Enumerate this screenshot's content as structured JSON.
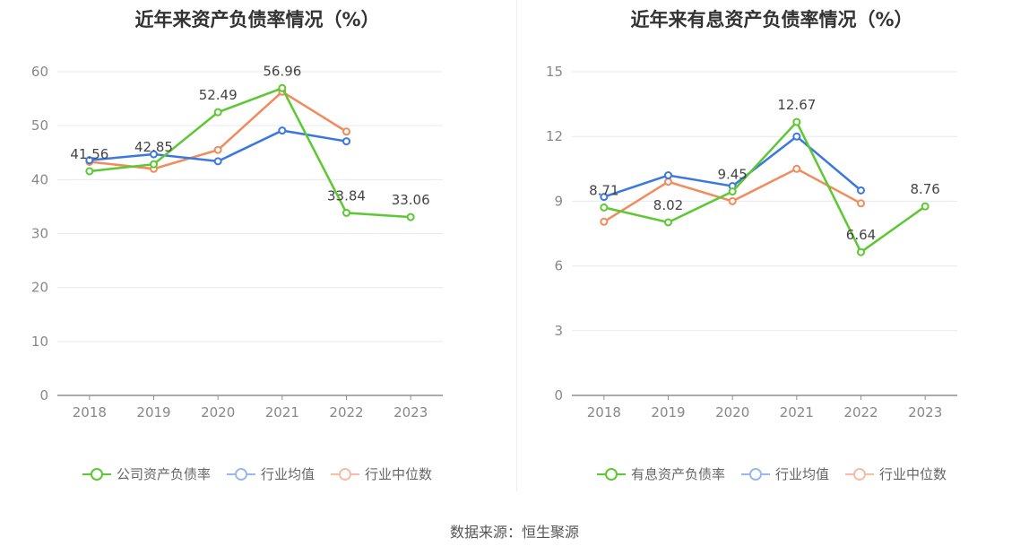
{
  "charts": [
    {
      "title": "近年来资产负债率情况（%）",
      "legend": [
        "公司资产负债率",
        "行业均值",
        "行业中位数"
      ],
      "legend_colors": [
        "#5cc832",
        "#3a78e0",
        "#f28a5c"
      ]
    },
    {
      "title": "近年来有息资产负债率情况（%）",
      "legend": [
        "有息资产负债率",
        "行业均值",
        "行业中位数"
      ],
      "legend_colors": [
        "#5cc832",
        "#3a78e0",
        "#f28a5c"
      ]
    }
  ],
  "footer": "数据来源：恒生聚源",
  "chart_data": [
    {
      "type": "line",
      "title": "近年来资产负债率情况（%）",
      "categories": [
        "2018",
        "2019",
        "2020",
        "2021",
        "2022",
        "2023"
      ],
      "ylim": [
        0,
        60
      ],
      "yticks": [
        0,
        10,
        20,
        30,
        40,
        50,
        60
      ],
      "grid": true,
      "legend_position": "bottom",
      "series": [
        {
          "name": "公司资产负债率",
          "color": "#5cc832",
          "values": [
            41.56,
            42.85,
            52.49,
            56.96,
            33.84,
            33.06
          ],
          "labels": [
            "41.56",
            "42.85",
            "52.49",
            "56.96",
            "33.84",
            "33.06"
          ]
        },
        {
          "name": "行业均值",
          "color": "#3a78e0",
          "values": [
            43.6,
            44.7,
            43.4,
            49.1,
            47.1,
            null
          ]
        },
        {
          "name": "行业中位数",
          "color": "#f28a5c",
          "values": [
            43.3,
            42.0,
            45.5,
            56.3,
            48.9,
            null
          ]
        }
      ]
    },
    {
      "type": "line",
      "title": "近年来有息资产负债率情况（%）",
      "categories": [
        "2018",
        "2019",
        "2020",
        "2021",
        "2022",
        "2023"
      ],
      "ylim": [
        0,
        15
      ],
      "yticks": [
        0,
        3,
        6,
        9,
        12,
        15
      ],
      "grid": true,
      "legend_position": "bottom",
      "series": [
        {
          "name": "有息资产负债率",
          "color": "#5cc832",
          "values": [
            8.71,
            8.02,
            9.45,
            12.67,
            6.64,
            8.76
          ],
          "labels": [
            "8.71",
            "8.02",
            "9.45",
            "12.67",
            "6.64",
            "8.76"
          ]
        },
        {
          "name": "行业均值",
          "color": "#3a78e0",
          "values": [
            9.2,
            10.2,
            9.7,
            12.0,
            9.5,
            null
          ]
        },
        {
          "name": "行业中位数",
          "color": "#f28a5c",
          "values": [
            8.05,
            9.9,
            9.0,
            10.5,
            8.9,
            null
          ]
        }
      ]
    }
  ]
}
